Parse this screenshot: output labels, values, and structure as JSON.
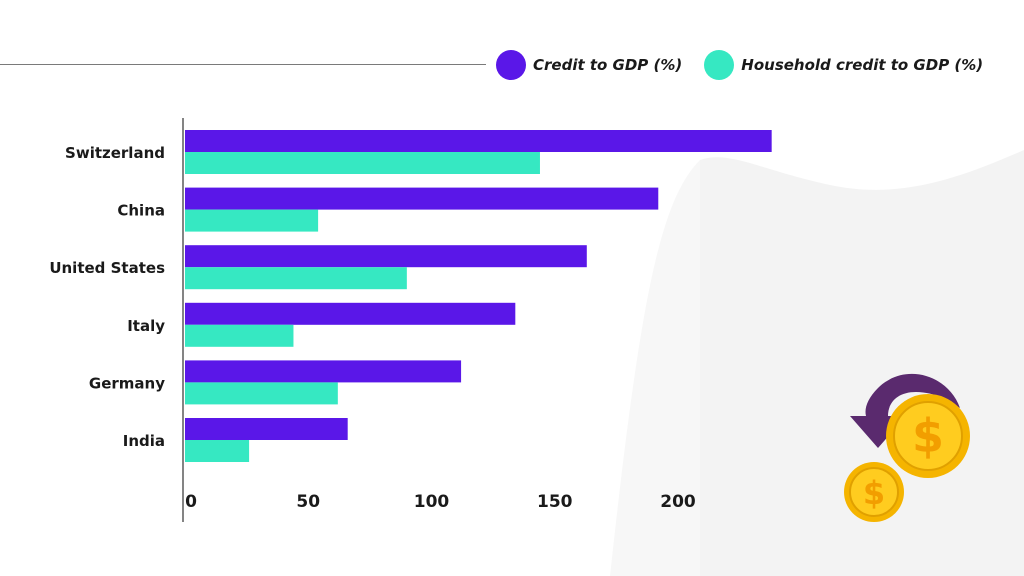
{
  "legend": {
    "items": [
      {
        "label": "Credit to GDP (%)",
        "color": "#5a17e8"
      },
      {
        "label": "Household credit to GDP (%)",
        "color": "#36e8c2"
      }
    ]
  },
  "chart_data": {
    "type": "bar",
    "orientation": "horizontal",
    "categories": [
      "Switzerland",
      "China",
      "United States",
      "Italy",
      "Germany",
      "India"
    ],
    "series": [
      {
        "name": "Credit to GDP (%)",
        "color": "#5a17e8",
        "values": [
          238,
          192,
          163,
          134,
          112,
          66
        ]
      },
      {
        "name": "Household credit to GDP (%)",
        "color": "#36e8c2",
        "values": [
          144,
          54,
          90,
          44,
          62,
          26
        ]
      }
    ],
    "xticks": [
      0,
      50,
      100,
      150,
      200
    ],
    "xlim": [
      0,
      250
    ],
    "grid": false,
    "legend_position": "top-right",
    "title": "",
    "xlabel": "",
    "ylabel": ""
  },
  "decor": {
    "coin_icon": "dollar-coins-with-arrow-icon",
    "coin_symbol": "$",
    "coin_color": "#f5b400",
    "arrow_color": "#5a2a6e"
  }
}
